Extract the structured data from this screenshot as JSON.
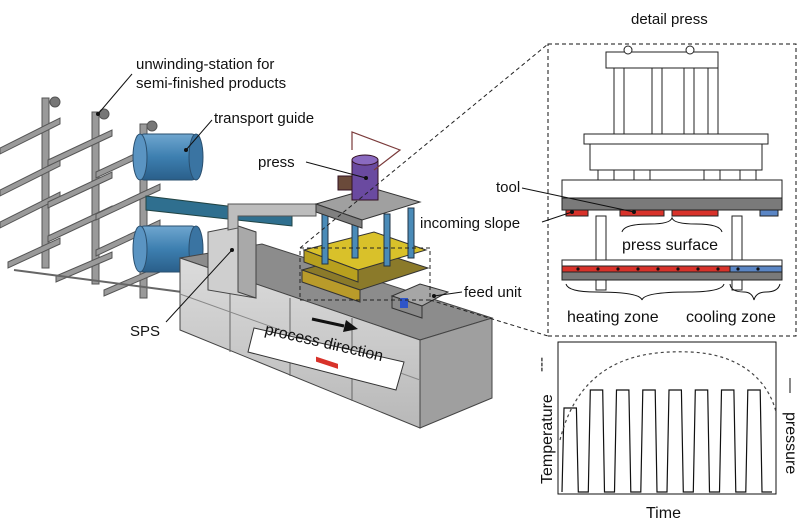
{
  "labels": {
    "unwinding_line1": "unwinding-station for",
    "unwinding_line2": "semi-finished products",
    "transport_guide": "transport guide",
    "press": "press",
    "feed_unit": "feed unit",
    "sps": "SPS",
    "process_direction": "process direction"
  },
  "detail": {
    "title": "detail press",
    "tool": "tool",
    "incoming_slope": "incoming slope",
    "press_surface": "press surface",
    "heating_zone": "heating zone",
    "cooling_zone": "cooling zone"
  },
  "profile_chart": {
    "ylabel_left": "Temperature",
    "ylabel_right": "pressure",
    "xlabel": "Time",
    "temperature_legend_mark": "---",
    "pressure_legend_mark": "—",
    "pressure_cycles": 8
  },
  "colors": {
    "machine_blue": "#4a8bb8",
    "heating_red": "#d8322a",
    "cooling_blue": "#5b86c5",
    "press_purple": "#6a4aa0",
    "platen_yellow": "#d9c12a"
  }
}
